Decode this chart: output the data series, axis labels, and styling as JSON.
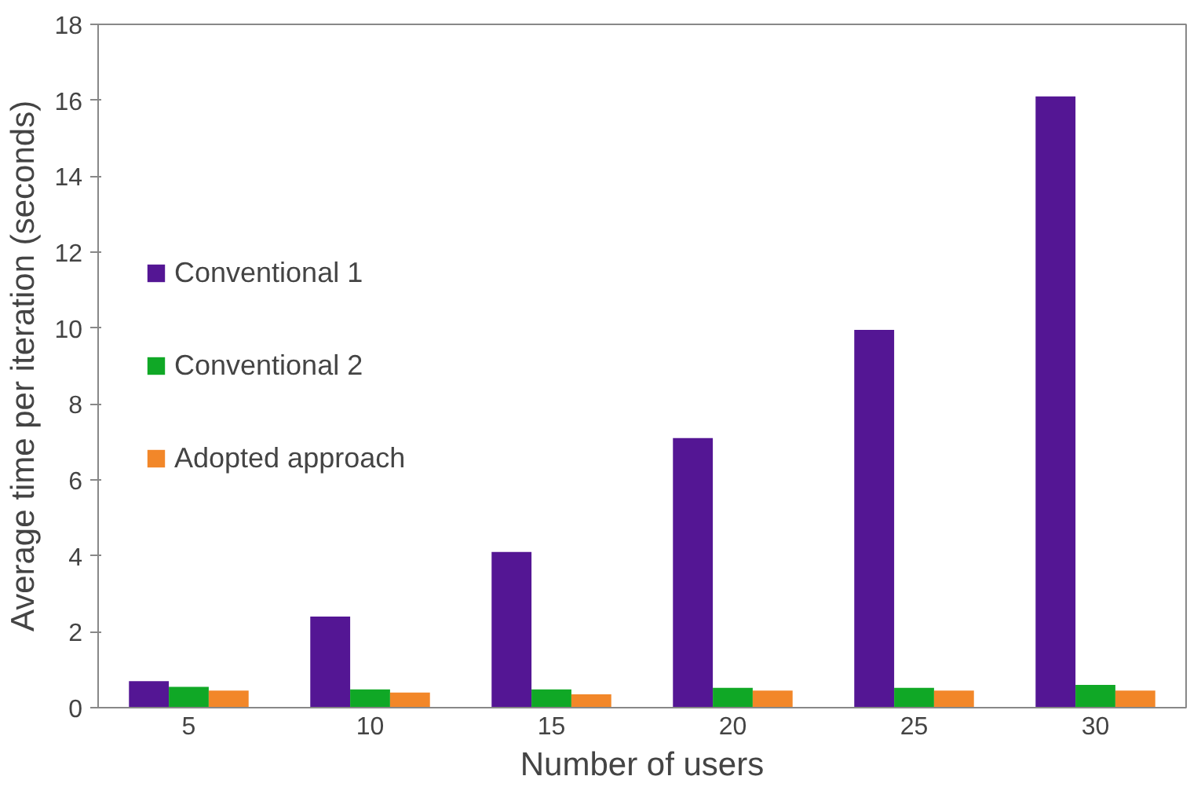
{
  "chart_data": {
    "type": "bar",
    "xlabel": "Number of users",
    "ylabel": "Average time per iteration (seconds)",
    "categories": [
      "5",
      "10",
      "15",
      "20",
      "25",
      "30"
    ],
    "series": [
      {
        "name": "Conventional 1",
        "color": "#541694",
        "values": [
          0.7,
          2.4,
          4.1,
          7.1,
          9.95,
          16.1
        ]
      },
      {
        "name": "Conventional 2",
        "color": "#10a826",
        "values": [
          0.55,
          0.48,
          0.48,
          0.52,
          0.52,
          0.6
        ]
      },
      {
        "name": "Adopted approach",
        "color": "#f28729",
        "values": [
          0.45,
          0.4,
          0.35,
          0.45,
          0.45,
          0.45
        ]
      }
    ],
    "ylim": [
      0,
      18
    ],
    "yticks": [
      0,
      2,
      4,
      6,
      8,
      10,
      12,
      14,
      16,
      18
    ],
    "grid": false,
    "legend": "left"
  }
}
